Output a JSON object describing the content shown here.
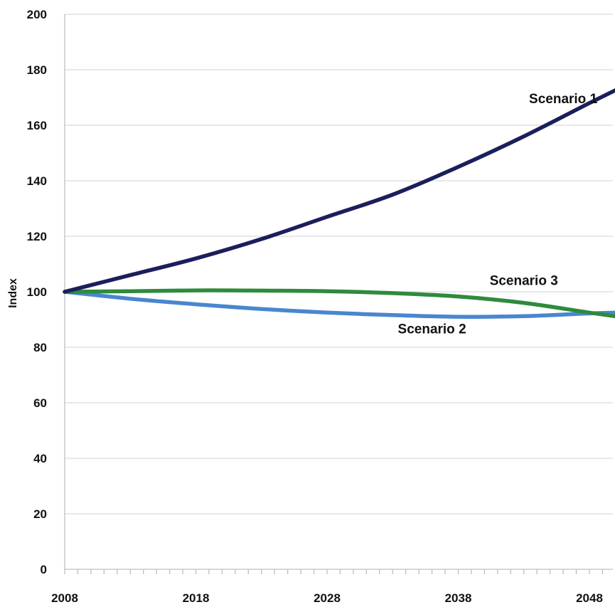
{
  "chart_data": {
    "type": "line",
    "title": "",
    "xlabel": "",
    "ylabel": "Index",
    "xlim": [
      2008,
      2051
    ],
    "ylim": [
      0,
      200
    ],
    "x_ticks": [
      2008,
      2018,
      2028,
      2038,
      2048
    ],
    "x_tick_labels": [
      "2008",
      "2018",
      "2028",
      "2038",
      "2048"
    ],
    "y_ticks": [
      0,
      20,
      40,
      60,
      80,
      100,
      120,
      140,
      160,
      180,
      200
    ],
    "y_tick_labels": [
      "0",
      "20",
      "40",
      "60",
      "80",
      "100",
      "120",
      "140",
      "160",
      "180",
      "200"
    ],
    "grid": true,
    "legend": "none",
    "x": [
      2008,
      2013,
      2018,
      2023,
      2028,
      2033,
      2038,
      2043,
      2048,
      2051
    ],
    "series": [
      {
        "name": "Scenario 1",
        "color": "#1a1f5c",
        "values": [
          100,
          106,
          112,
          119,
          127,
          135,
          145,
          156,
          168,
          175
        ],
        "label_at": [
          2046,
          168
        ]
      },
      {
        "name": "Scenario 2",
        "color": "#4a86cf",
        "values": [
          100,
          97.5,
          95.5,
          93.8,
          92.5,
          91.6,
          91.0,
          91.2,
          92.2,
          92.6
        ],
        "label_at": [
          2036,
          85
        ]
      },
      {
        "name": "Scenario 3",
        "color": "#2e8b3c",
        "values": [
          100,
          100.2,
          100.5,
          100.4,
          100.2,
          99.5,
          98.3,
          96.0,
          92.5,
          90.5
        ],
        "label_at": [
          2043,
          102.5
        ]
      }
    ]
  }
}
